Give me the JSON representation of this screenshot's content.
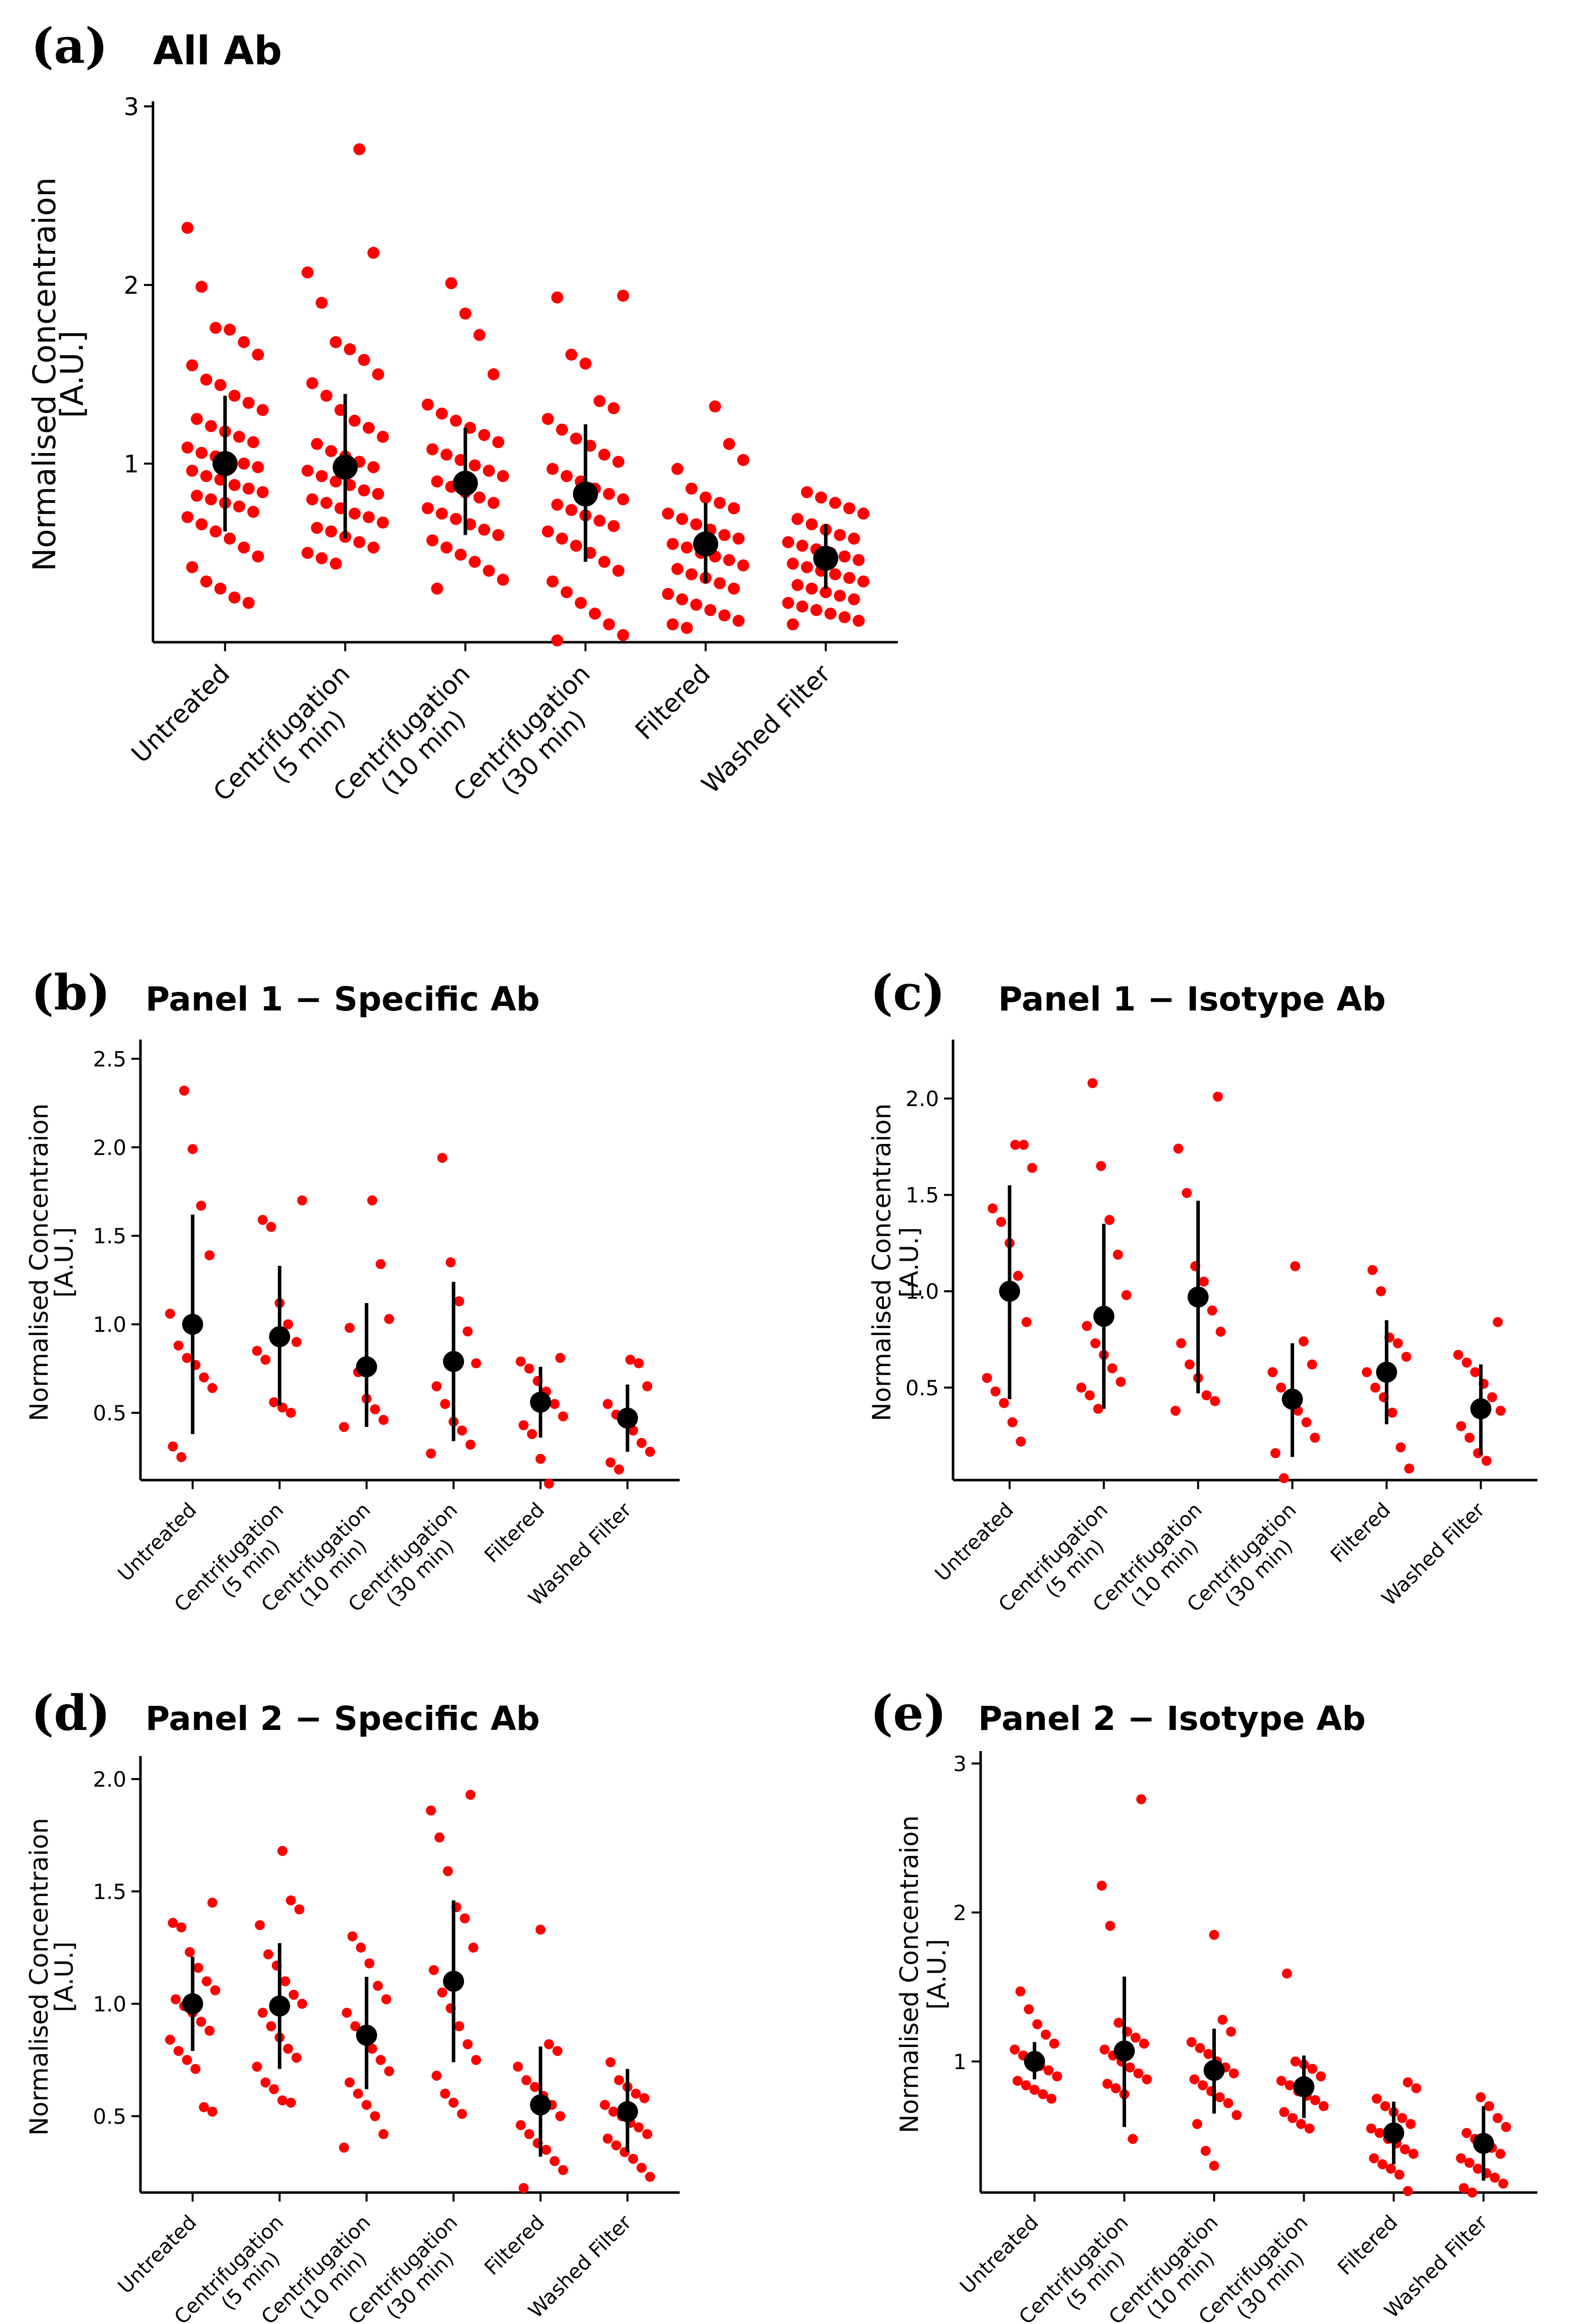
{
  "figure": {
    "panels": [
      {
        "label": "(a)",
        "title": "All Ab"
      },
      {
        "label": "(b)",
        "title": "Panel 1 − Specific Ab"
      },
      {
        "label": "(c)",
        "title": "Panel 1 − Isotype Ab"
      },
      {
        "label": "(d)",
        "title": "Panel 2 − Specific Ab"
      },
      {
        "label": "(e)",
        "title": "Panel 2 − Isotype Ab"
      }
    ]
  },
  "chart_data": [
    {
      "type": "scatter",
      "title": "All Ab",
      "panel_label": "(a)",
      "ylabel": [
        "Normalised Concentraion",
        "[A.U.]"
      ],
      "ylim": [
        0,
        3
      ],
      "yticks": [
        1,
        2,
        3
      ],
      "ytick_labels": [
        "1",
        "2",
        "3"
      ],
      "categories": [
        [
          "Untreated"
        ],
        [
          "Centrifugation",
          "(5 min)"
        ],
        [
          "Centrifugation",
          "(10 min)"
        ],
        [
          "Centrifugation",
          "(30 min)"
        ],
        [
          "Filtered"
        ],
        [
          "Washed Filter"
        ]
      ],
      "mean": [
        1.0,
        0.98,
        0.89,
        0.83,
        0.55,
        0.47
      ],
      "err_low": [
        0.62,
        0.58,
        0.6,
        0.45,
        0.33,
        0.3
      ],
      "err_high": [
        1.38,
        1.39,
        1.2,
        1.22,
        0.78,
        0.66
      ],
      "points": [
        [
          2.32,
          1.99,
          1.76,
          1.75,
          1.68,
          1.61,
          1.55,
          1.47,
          1.44,
          1.38,
          1.34,
          1.3,
          1.25,
          1.21,
          1.18,
          1.15,
          1.12,
          1.09,
          1.06,
          1.04,
          1.02,
          1.0,
          0.98,
          0.96,
          0.93,
          0.91,
          0.88,
          0.86,
          0.84,
          0.82,
          0.8,
          0.78,
          0.76,
          0.73,
          0.7,
          0.66,
          0.62,
          0.58,
          0.53,
          0.48,
          0.42,
          0.34,
          0.3,
          0.25,
          0.22
        ],
        [
          2.76,
          2.18,
          2.07,
          1.9,
          1.68,
          1.64,
          1.58,
          1.5,
          1.45,
          1.38,
          1.3,
          1.24,
          1.2,
          1.15,
          1.11,
          1.07,
          1.04,
          1.01,
          0.98,
          0.96,
          0.93,
          0.9,
          0.88,
          0.85,
          0.83,
          0.8,
          0.78,
          0.75,
          0.72,
          0.7,
          0.67,
          0.64,
          0.62,
          0.59,
          0.56,
          0.53,
          0.5,
          0.47,
          0.44
        ],
        [
          2.01,
          1.84,
          1.72,
          1.5,
          1.33,
          1.28,
          1.24,
          1.2,
          1.16,
          1.12,
          1.08,
          1.05,
          1.02,
          0.99,
          0.96,
          0.93,
          0.9,
          0.87,
          0.84,
          0.81,
          0.78,
          0.75,
          0.72,
          0.69,
          0.66,
          0.63,
          0.6,
          0.57,
          0.53,
          0.49,
          0.45,
          0.4,
          0.35,
          0.3
        ],
        [
          1.94,
          1.93,
          1.61,
          1.56,
          1.35,
          1.31,
          1.25,
          1.19,
          1.14,
          1.1,
          1.05,
          1.01,
          0.97,
          0.93,
          0.9,
          0.86,
          0.83,
          0.8,
          0.77,
          0.74,
          0.71,
          0.68,
          0.65,
          0.62,
          0.58,
          0.54,
          0.5,
          0.45,
          0.4,
          0.34,
          0.28,
          0.22,
          0.16,
          0.1,
          0.04,
          0.01
        ],
        [
          1.32,
          1.11,
          1.02,
          0.97,
          0.86,
          0.81,
          0.78,
          0.75,
          0.72,
          0.69,
          0.66,
          0.63,
          0.6,
          0.58,
          0.55,
          0.53,
          0.5,
          0.48,
          0.46,
          0.43,
          0.41,
          0.38,
          0.36,
          0.33,
          0.3,
          0.27,
          0.24,
          0.21,
          0.18,
          0.15,
          0.12,
          0.1,
          0.08
        ],
        [
          0.84,
          0.81,
          0.78,
          0.75,
          0.72,
          0.69,
          0.66,
          0.63,
          0.6,
          0.58,
          0.56,
          0.54,
          0.52,
          0.5,
          0.48,
          0.46,
          0.44,
          0.42,
          0.4,
          0.38,
          0.36,
          0.34,
          0.32,
          0.3,
          0.28,
          0.26,
          0.24,
          0.22,
          0.2,
          0.18,
          0.16,
          0.14,
          0.12,
          0.1
        ]
      ]
    },
    {
      "type": "scatter",
      "title": "Panel 1 − Specific Ab",
      "panel_label": "(b)",
      "ylabel": [
        "Normalised Concentraion",
        "[A.U.]"
      ],
      "ylim": [
        0.12,
        2.58
      ],
      "yticks": [
        0.5,
        1.0,
        1.5,
        2.0,
        2.5
      ],
      "ytick_labels": [
        "0.5",
        "1.0",
        "1.5",
        "2.0",
        "2.5"
      ],
      "categories": [
        [
          "Untreated"
        ],
        [
          "Centrifugation",
          "(5 min)"
        ],
        [
          "Centrifugation",
          "(10 min)"
        ],
        [
          "Centrifugation",
          "(30 min)"
        ],
        [
          "Filtered"
        ],
        [
          "Washed Filter"
        ]
      ],
      "mean": [
        1.0,
        0.93,
        0.76,
        0.79,
        0.56,
        0.47
      ],
      "err_low": [
        0.38,
        0.54,
        0.42,
        0.34,
        0.36,
        0.28
      ],
      "err_high": [
        1.62,
        1.33,
        1.12,
        1.24,
        0.76,
        0.66
      ],
      "points": [
        [
          2.32,
          1.99,
          1.67,
          1.39,
          1.06,
          0.88,
          0.81,
          0.77,
          0.7,
          0.64,
          0.31,
          0.25
        ],
        [
          1.7,
          1.59,
          1.55,
          1.12,
          1.0,
          0.9,
          0.85,
          0.8,
          0.56,
          0.53,
          0.5
        ],
        [
          1.7,
          1.34,
          1.03,
          0.98,
          0.73,
          0.58,
          0.52,
          0.46,
          0.42
        ],
        [
          1.94,
          1.35,
          1.13,
          0.96,
          0.78,
          0.65,
          0.55,
          0.45,
          0.4,
          0.32,
          0.27
        ],
        [
          0.81,
          0.79,
          0.75,
          0.68,
          0.62,
          0.55,
          0.48,
          0.43,
          0.38,
          0.24,
          0.1
        ],
        [
          0.8,
          0.78,
          0.65,
          0.55,
          0.49,
          0.45,
          0.4,
          0.33,
          0.28,
          0.22,
          0.18
        ]
      ]
    },
    {
      "type": "scatter",
      "title": "Panel 1 − Isotype Ab",
      "panel_label": "(c)",
      "ylabel": [
        "Normalised Concentraion",
        "[A.U.]"
      ],
      "ylim": [
        0.02,
        2.28
      ],
      "yticks": [
        0.5,
        1.0,
        1.5,
        2.0
      ],
      "ytick_labels": [
        "0.5",
        "1.0",
        "1.5",
        "2.0"
      ],
      "categories": [
        [
          "Untreated"
        ],
        [
          "Centrifugation",
          "(5 min)"
        ],
        [
          "Centrifugation",
          "(10 min)"
        ],
        [
          "Centrifugation",
          "(30 min)"
        ],
        [
          "Filtered"
        ],
        [
          "Washed Filter"
        ]
      ],
      "mean": [
        1.0,
        0.87,
        0.97,
        0.44,
        0.58,
        0.39
      ],
      "err_low": [
        0.44,
        0.39,
        0.47,
        0.14,
        0.31,
        0.15
      ],
      "err_high": [
        1.55,
        1.35,
        1.47,
        0.73,
        0.85,
        0.62
      ],
      "points": [
        [
          1.76,
          1.76,
          1.64,
          1.43,
          1.36,
          1.25,
          1.08,
          0.84,
          0.55,
          0.48,
          0.42,
          0.32,
          0.22
        ],
        [
          2.08,
          1.65,
          1.37,
          1.19,
          0.98,
          0.82,
          0.73,
          0.67,
          0.6,
          0.53,
          0.5,
          0.46,
          0.39
        ],
        [
          2.01,
          1.74,
          1.51,
          1.13,
          1.05,
          0.9,
          0.79,
          0.73,
          0.62,
          0.55,
          0.46,
          0.43,
          0.38
        ],
        [
          1.13,
          0.74,
          0.62,
          0.58,
          0.5,
          0.45,
          0.38,
          0.32,
          0.24,
          0.16,
          0.03
        ],
        [
          1.11,
          1.0,
          0.76,
          0.73,
          0.66,
          0.58,
          0.5,
          0.45,
          0.37,
          0.19,
          0.08
        ],
        [
          0.84,
          0.67,
          0.63,
          0.58,
          0.52,
          0.45,
          0.38,
          0.3,
          0.24,
          0.16,
          0.12
        ]
      ]
    },
    {
      "type": "scatter",
      "title": "Panel 2 − Specific Ab",
      "panel_label": "(d)",
      "ylabel": [
        "Normalised Concentraion",
        "[A.U.]"
      ],
      "ylim": [
        0.16,
        2.08
      ],
      "yticks": [
        0.5,
        1.0,
        1.5,
        2.0
      ],
      "ytick_labels": [
        "0.5",
        "1.0",
        "1.5",
        "2.0"
      ],
      "categories": [
        [
          "Untreated"
        ],
        [
          "Centrifugation",
          "(5 min)"
        ],
        [
          "Centrifugation",
          "(10 min)"
        ],
        [
          "Centrifugation",
          "(30 min)"
        ],
        [
          "Filtered"
        ],
        [
          "Washed Filter"
        ]
      ],
      "mean": [
        1.0,
        0.99,
        0.86,
        1.1,
        0.55,
        0.52
      ],
      "err_low": [
        0.79,
        0.71,
        0.62,
        0.74,
        0.32,
        0.34
      ],
      "err_high": [
        1.21,
        1.27,
        1.12,
        1.46,
        0.81,
        0.71
      ],
      "points": [
        [
          1.45,
          1.36,
          1.34,
          1.23,
          1.16,
          1.1,
          1.06,
          1.02,
          0.99,
          0.96,
          0.92,
          0.88,
          0.84,
          0.79,
          0.75,
          0.71,
          0.54,
          0.52
        ],
        [
          1.68,
          1.46,
          1.42,
          1.35,
          1.22,
          1.17,
          1.1,
          1.04,
          1.0,
          0.96,
          0.9,
          0.85,
          0.8,
          0.76,
          0.72,
          0.65,
          0.62,
          0.57,
          0.56
        ],
        [
          1.3,
          1.25,
          1.18,
          1.08,
          1.02,
          0.96,
          0.9,
          0.85,
          0.8,
          0.75,
          0.7,
          0.65,
          0.6,
          0.55,
          0.5,
          0.42,
          0.36
        ],
        [
          1.93,
          1.86,
          1.74,
          1.59,
          1.43,
          1.38,
          1.25,
          1.15,
          1.05,
          0.98,
          0.9,
          0.82,
          0.75,
          0.68,
          0.6,
          0.56,
          0.51
        ],
        [
          1.33,
          0.82,
          0.79,
          0.72,
          0.66,
          0.63,
          0.59,
          0.55,
          0.5,
          0.46,
          0.42,
          0.38,
          0.35,
          0.3,
          0.26,
          0.18
        ],
        [
          0.74,
          0.66,
          0.63,
          0.6,
          0.58,
          0.55,
          0.52,
          0.5,
          0.47,
          0.45,
          0.42,
          0.4,
          0.37,
          0.34,
          0.31,
          0.27,
          0.23
        ]
      ]
    },
    {
      "type": "scatter",
      "title": "Panel 2 − Isotype Ab",
      "panel_label": "(e)",
      "ylabel": [
        "Normalised Concentraion",
        "[A.U.]"
      ],
      "ylim": [
        0.12,
        3.05
      ],
      "yticks": [
        1,
        2,
        3
      ],
      "ytick_labels": [
        "1",
        "2",
        "3"
      ],
      "categories": [
        [
          "Untreated"
        ],
        [
          "Centrifugation",
          "(5 min)"
        ],
        [
          "Centrifugation",
          "(10 min)"
        ],
        [
          "Centrifugation",
          "(30 min)"
        ],
        [
          "Filtered"
        ],
        [
          "Washed Filter"
        ]
      ],
      "mean": [
        1.0,
        1.07,
        0.94,
        0.83,
        0.52,
        0.45
      ],
      "err_low": [
        0.88,
        0.56,
        0.65,
        0.62,
        0.31,
        0.2
      ],
      "err_high": [
        1.13,
        1.57,
        1.22,
        1.04,
        0.73,
        0.7
      ],
      "points": [
        [
          1.47,
          1.35,
          1.25,
          1.18,
          1.12,
          1.08,
          1.04,
          1.0,
          0.97,
          0.94,
          0.9,
          0.87,
          0.84,
          0.81,
          0.78,
          0.75
        ],
        [
          2.76,
          2.18,
          1.91,
          1.26,
          1.2,
          1.16,
          1.12,
          1.08,
          1.04,
          1.0,
          0.96,
          0.92,
          0.88,
          0.85,
          0.82,
          0.78,
          0.48
        ],
        [
          1.85,
          1.28,
          1.2,
          1.13,
          1.09,
          1.05,
          1.0,
          0.96,
          0.92,
          0.88,
          0.84,
          0.8,
          0.76,
          0.72,
          0.64,
          0.58,
          0.4,
          0.3
        ],
        [
          1.59,
          1.0,
          0.98,
          0.95,
          0.9,
          0.87,
          0.84,
          0.8,
          0.77,
          0.74,
          0.7,
          0.66,
          0.62,
          0.58,
          0.55
        ],
        [
          0.86,
          0.82,
          0.75,
          0.7,
          0.66,
          0.62,
          0.58,
          0.55,
          0.52,
          0.48,
          0.45,
          0.41,
          0.38,
          0.35,
          0.31,
          0.28,
          0.24,
          0.13
        ],
        [
          0.76,
          0.7,
          0.62,
          0.56,
          0.52,
          0.48,
          0.45,
          0.42,
          0.38,
          0.35,
          0.32,
          0.28,
          0.25,
          0.22,
          0.18,
          0.15,
          0.12
        ]
      ]
    }
  ]
}
